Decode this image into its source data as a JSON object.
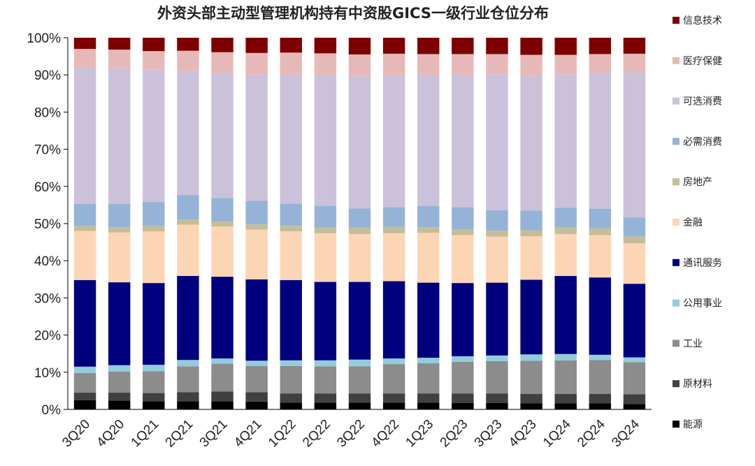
{
  "chart_data": {
    "type": "bar",
    "stacked": true,
    "title": "外资头部主动型管理机构持有中资股GICS一级行业仓位分布",
    "xlabel": "",
    "ylabel": "",
    "ylim": [
      0,
      100
    ],
    "yticks": [
      "0%",
      "10%",
      "20%",
      "30%",
      "40%",
      "50%",
      "60%",
      "70%",
      "80%",
      "90%",
      "100%"
    ],
    "grid": false,
    "legend_position": "right",
    "categories": [
      "3Q20",
      "4Q20",
      "1Q21",
      "2Q21",
      "3Q21",
      "4Q21",
      "1Q22",
      "2Q22",
      "3Q22",
      "4Q22",
      "1Q23",
      "2Q23",
      "3Q23",
      "4Q23",
      "1Q24",
      "2Q24",
      "3Q24"
    ],
    "series": [
      {
        "name": "能源",
        "color": "#000000",
        "values": [
          2.5,
          2.4,
          2.2,
          2.2,
          2.2,
          2.1,
          1.8,
          1.8,
          1.8,
          1.8,
          1.8,
          1.7,
          1.7,
          1.6,
          1.6,
          1.6,
          1.4
        ]
      },
      {
        "name": "原材料",
        "color": "#404040",
        "values": [
          2.0,
          2.1,
          2.2,
          2.4,
          2.6,
          2.5,
          2.5,
          2.5,
          2.5,
          2.5,
          2.5,
          2.6,
          2.6,
          2.6,
          2.6,
          2.6,
          2.7
        ]
      },
      {
        "name": "工业",
        "color": "#8c8c8c",
        "values": [
          5.3,
          5.7,
          5.9,
          7.0,
          7.5,
          7.1,
          7.4,
          7.3,
          7.3,
          7.9,
          8.1,
          8.5,
          8.7,
          8.9,
          9.0,
          9.1,
          8.6
        ]
      },
      {
        "name": "公用事业",
        "color": "#92cddc",
        "values": [
          1.7,
          1.7,
          1.7,
          1.7,
          1.4,
          1.4,
          1.5,
          1.6,
          1.8,
          1.5,
          1.5,
          1.5,
          1.5,
          1.7,
          1.7,
          1.4,
          1.3
        ]
      },
      {
        "name": "通讯服务",
        "color": "#00007f",
        "values": [
          23.3,
          22.3,
          22.0,
          22.6,
          22.0,
          21.9,
          21.6,
          21.1,
          20.9,
          20.8,
          20.2,
          19.7,
          19.6,
          20.1,
          21.0,
          20.8,
          19.8
        ]
      },
      {
        "name": "金融",
        "color": "#fcd5b5",
        "values": [
          13.2,
          13.4,
          13.9,
          13.8,
          13.5,
          13.4,
          13.1,
          13.1,
          12.9,
          12.9,
          13.4,
          12.9,
          12.4,
          11.7,
          11.3,
          11.4,
          10.9
        ]
      },
      {
        "name": "房地产",
        "color": "#c4bd97",
        "values": [
          1.3,
          1.4,
          1.4,
          1.4,
          1.3,
          1.4,
          1.5,
          1.5,
          1.7,
          1.7,
          1.5,
          1.6,
          1.6,
          1.6,
          1.7,
          1.8,
          1.8
        ]
      },
      {
        "name": "必需消费",
        "color": "#95b3d7",
        "values": [
          6.0,
          6.3,
          6.5,
          6.6,
          6.4,
          6.3,
          6.0,
          5.8,
          5.2,
          5.3,
          5.7,
          5.9,
          5.5,
          5.3,
          5.4,
          5.3,
          5.1
        ]
      },
      {
        "name": "可选消费",
        "color": "#ccc1da",
        "values": [
          36.7,
          36.5,
          35.6,
          33.4,
          33.6,
          34.0,
          34.6,
          35.3,
          35.5,
          35.5,
          35.3,
          35.6,
          36.6,
          36.3,
          35.8,
          36.5,
          39.1
        ]
      },
      {
        "name": "医疗保健",
        "color": "#e6b9b8",
        "values": [
          5.0,
          5.0,
          5.0,
          5.4,
          5.6,
          5.8,
          6.0,
          5.8,
          5.9,
          5.8,
          5.6,
          5.6,
          5.4,
          5.6,
          5.3,
          5.1,
          5.0
        ]
      },
      {
        "name": "信息技术",
        "color": "#7f0000",
        "values": [
          3.0,
          3.2,
          3.6,
          3.5,
          3.9,
          4.1,
          4.0,
          4.2,
          4.5,
          4.3,
          4.4,
          4.4,
          4.4,
          4.6,
          4.6,
          4.4,
          4.3
        ]
      }
    ]
  }
}
